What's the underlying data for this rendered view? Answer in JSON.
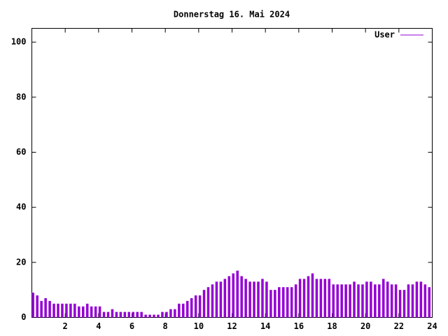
{
  "chart_data": {
    "type": "impulses",
    "title": "Donnerstag 16. Mai 2024",
    "x": [
      0,
      0.25,
      0.5,
      0.75,
      1,
      1.25,
      1.5,
      1.75,
      2,
      2.25,
      2.5,
      2.75,
      3,
      3.25,
      3.5,
      3.75,
      4,
      4.25,
      4.5,
      4.75,
      5,
      5.25,
      5.5,
      5.75,
      6,
      6.25,
      6.5,
      6.75,
      7,
      7.25,
      7.5,
      7.75,
      8,
      8.25,
      8.5,
      8.75,
      9,
      9.25,
      9.5,
      9.75,
      10,
      10.25,
      10.5,
      10.75,
      11,
      11.25,
      11.5,
      11.75,
      12,
      12.25,
      12.5,
      12.75,
      13,
      13.25,
      13.5,
      13.75,
      14,
      14.25,
      14.5,
      14.75,
      15,
      15.25,
      15.5,
      15.75,
      16,
      16.25,
      16.5,
      16.75,
      17,
      17.25,
      17.5,
      17.75,
      18,
      18.25,
      18.5,
      18.75,
      19,
      19.25,
      19.5,
      19.75,
      20,
      20.25,
      20.5,
      20.75,
      21,
      21.25,
      21.5,
      21.75,
      22,
      22.25,
      22.5,
      22.75,
      23,
      23.25,
      23.5,
      23.75
    ],
    "series": [
      {
        "name": "User",
        "color": "#9400d3",
        "values": [
          9,
          8,
          6,
          7,
          6,
          5,
          5,
          5,
          5,
          5,
          5,
          4,
          4,
          5,
          4,
          4,
          4,
          2,
          2,
          3,
          2,
          2,
          2,
          2,
          2,
          2,
          2,
          1,
          1,
          1,
          1,
          2,
          2,
          3,
          3,
          5,
          5,
          6,
          7,
          8,
          8,
          10,
          11,
          12,
          13,
          13,
          14,
          15,
          16,
          17,
          15,
          14,
          13,
          13,
          13,
          14,
          13,
          10,
          10,
          11,
          11,
          11,
          11,
          12,
          14,
          14,
          15,
          16,
          14,
          14,
          14,
          14,
          12,
          12,
          12,
          12,
          12,
          13,
          12,
          12,
          13,
          13,
          12,
          12,
          14,
          13,
          12,
          12,
          10,
          10,
          12,
          12,
          13,
          13,
          12,
          11
        ]
      }
    ],
    "xlim": [
      0,
      24
    ],
    "xticks": [
      2,
      4,
      6,
      8,
      10,
      12,
      14,
      16,
      18,
      20,
      22,
      24
    ],
    "ylim": [
      0,
      105
    ],
    "yticks": [
      0,
      20,
      40,
      60,
      80,
      100
    ],
    "legend": "top-right"
  }
}
